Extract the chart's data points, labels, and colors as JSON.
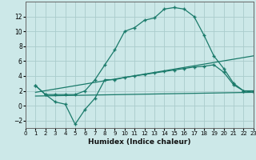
{
  "line1_x": [
    1,
    2,
    3,
    4,
    5,
    6,
    7,
    8,
    9,
    10,
    11,
    12,
    13,
    14,
    15,
    16,
    17,
    18,
    19,
    20,
    21,
    22,
    23
  ],
  "line1_y": [
    2.7,
    1.5,
    1.5,
    1.5,
    1.5,
    2.0,
    3.5,
    5.5,
    7.5,
    10.0,
    10.5,
    11.5,
    11.8,
    13.0,
    13.2,
    13.0,
    12.0,
    9.5,
    6.7,
    5.0,
    3.0,
    2.0,
    1.8
  ],
  "line2_x": [
    1,
    2,
    3,
    4,
    5,
    6,
    7,
    8,
    9,
    10,
    11,
    12,
    13,
    14,
    15,
    16,
    17,
    18,
    19,
    20,
    21,
    22,
    23
  ],
  "line2_y": [
    2.7,
    1.5,
    0.5,
    0.2,
    -2.5,
    -0.5,
    1.0,
    3.5,
    3.5,
    3.8,
    4.0,
    4.2,
    4.4,
    4.6,
    4.8,
    5.0,
    5.2,
    5.3,
    5.5,
    4.5,
    2.8,
    2.0,
    2.0
  ],
  "line3_x": [
    1,
    23
  ],
  "line3_y": [
    1.8,
    6.7
  ],
  "line4_x": [
    1,
    23
  ],
  "line4_y": [
    1.3,
    1.8
  ],
  "line_color": "#1a7a6a",
  "bg_color": "#cce8e8",
  "grid_color": "#aacccc",
  "xlabel": "Humidex (Indice chaleur)",
  "ylim": [
    -3,
    14
  ],
  "xlim": [
    0,
    23
  ],
  "yticks": [
    -2,
    0,
    2,
    4,
    6,
    8,
    10,
    12
  ],
  "xticks": [
    0,
    1,
    2,
    3,
    4,
    5,
    6,
    7,
    8,
    9,
    10,
    11,
    12,
    13,
    14,
    15,
    16,
    17,
    18,
    19,
    20,
    21,
    22,
    23
  ]
}
